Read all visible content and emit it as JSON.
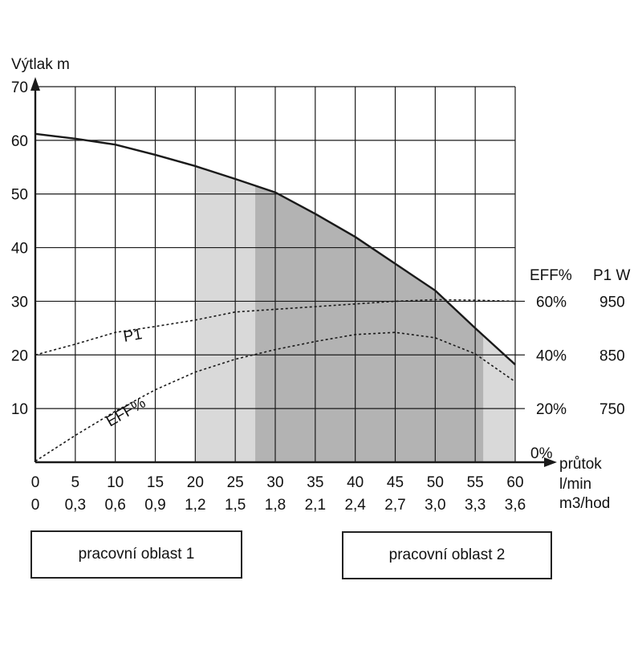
{
  "colors": {
    "zone_light": "#d9d9d9",
    "zone_dark": "#b3b3b3",
    "grid": "#1a1a1a",
    "curve": "#1a1a1a"
  },
  "legend": {
    "zone1_label": "pracovní oblast 1",
    "zone2_label": "pracovní oblast 2"
  },
  "chart_data": {
    "type": "line",
    "ylabel": "Výtlak m",
    "xlabel_lines": [
      "průtok",
      "l/min",
      "m3/hod"
    ],
    "xlim": [
      0,
      60
    ],
    "ylim": [
      0,
      70
    ],
    "x_ticks": [
      0,
      5,
      10,
      15,
      20,
      25,
      30,
      35,
      40,
      45,
      50,
      55,
      60
    ],
    "x_tick_labels_lmin": [
      "0",
      "5",
      "10",
      "15",
      "20",
      "25",
      "30",
      "35",
      "40",
      "45",
      "50",
      "55",
      "60"
    ],
    "x_tick_labels_m3h": [
      "0",
      "0,3",
      "0,6",
      "0,9",
      "1,2",
      "1,5",
      "1,8",
      "2,1",
      "2,4",
      "2,7",
      "3,0",
      "3,3",
      "3,6"
    ],
    "y_ticks": [
      10,
      20,
      30,
      40,
      50,
      60,
      70
    ],
    "y_tick_labels": [
      "10",
      "20",
      "30",
      "40",
      "50",
      "60",
      "70"
    ],
    "right_axis": {
      "eff_title": "EFF%",
      "p1_title": "P1 W",
      "ticks": [
        {
          "y": 0,
          "eff": "0%",
          "p1": ""
        },
        {
          "y": 10,
          "eff": "20%",
          "p1": "750"
        },
        {
          "y": 20,
          "eff": "40%",
          "p1": "850"
        },
        {
          "y": 30,
          "eff": "60%",
          "p1": "950"
        }
      ]
    },
    "series": [
      {
        "name": "head",
        "style": "solid",
        "x": [
          0,
          5,
          10,
          15,
          20,
          25,
          30,
          35,
          40,
          45,
          50,
          55,
          60
        ],
        "y": [
          61.2,
          60.3,
          59.2,
          57.3,
          55.2,
          52.8,
          50.3,
          46.3,
          42.0,
          37.0,
          32.0,
          25.0,
          18.2
        ]
      },
      {
        "name": "P1",
        "label": "P1",
        "style": "dotted",
        "x": [
          0,
          5,
          10,
          15,
          20,
          25,
          30,
          35,
          40,
          45,
          50,
          55,
          60
        ],
        "y": [
          20.0,
          22.0,
          24.2,
          25.3,
          26.5,
          28.0,
          28.5,
          29.0,
          29.5,
          30.0,
          30.3,
          30.2,
          30.0
        ]
      },
      {
        "name": "EFF%",
        "label": "EFF%",
        "style": "dotted",
        "x": [
          0,
          5,
          10,
          15,
          20,
          25,
          30,
          35,
          40,
          45,
          50,
          55,
          60
        ],
        "y": [
          0.2,
          5.0,
          9.5,
          13.5,
          16.8,
          19.2,
          21.0,
          22.5,
          23.8,
          24.2,
          23.2,
          20.2,
          15.0
        ]
      }
    ],
    "zones": [
      {
        "name": "pracovní oblast 1",
        "x_from": 27.5,
        "x_to": 56,
        "shade": "dark"
      },
      {
        "name": "pracovní oblast 2",
        "x_from": 20,
        "x_to": 60,
        "shade": "light"
      }
    ],
    "grid": true
  }
}
